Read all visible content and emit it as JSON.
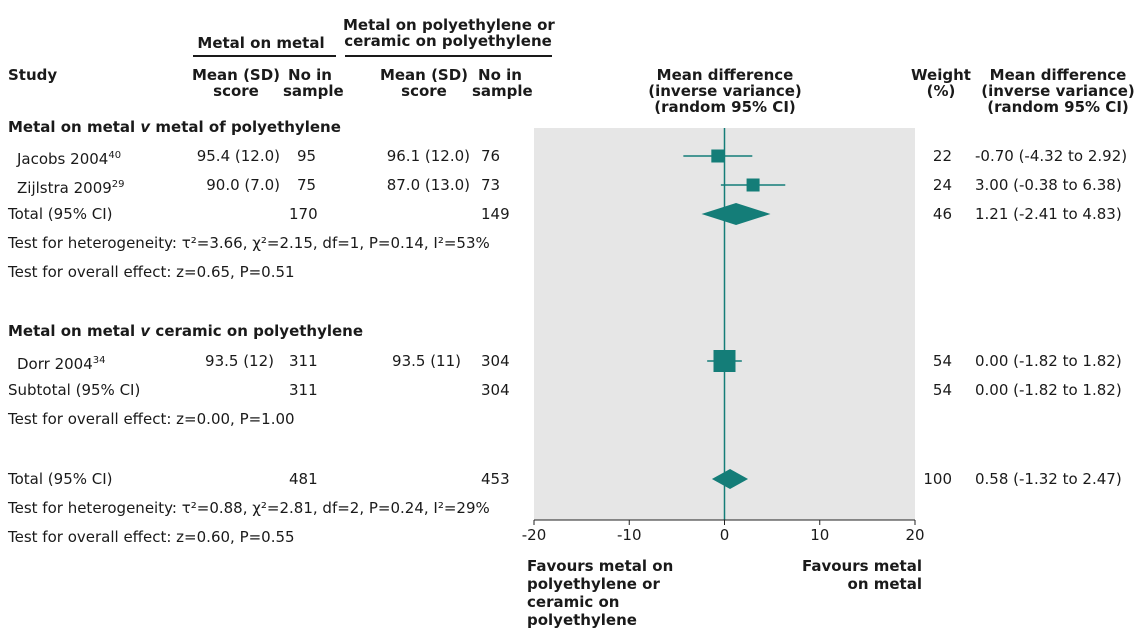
{
  "headers": {
    "study": "Study",
    "group1": "Metal on metal",
    "group2_line1": "Metal on polyethylene or",
    "group2_line2": "ceramic on polyethylene",
    "mean_sd_1": "Mean (SD)",
    "score_1": "score",
    "noin_1": "No in",
    "sample_1": "sample",
    "mean_sd_2": "Mean (SD)",
    "score_2": "score",
    "noin_2": "No in",
    "sample_2": "sample",
    "md_line1": "Mean difference",
    "md_line2": "(inverse variance)",
    "md_line3": "(random 95% CI)",
    "weight_line1": "Weight",
    "weight_line2": "(%)",
    "mdr_line1": "Mean difference",
    "mdr_line2": "(inverse variance)",
    "mdr_line3": "(random 95% CI)"
  },
  "sections": [
    {
      "title_a": "Metal on metal ",
      "title_v": "v",
      "title_b": " metal of polyethylene",
      "studies": [
        {
          "name": "Jacobs 2004",
          "ref": "40",
          "m1": "95.4 (12.0)",
          "n1": "95",
          "m2": "96.1 (12.0)",
          "n2": "76",
          "weight": "22",
          "ci_text": "-0.70 (-4.32 to 2.92)"
        },
        {
          "name": "Zijlstra 2009",
          "ref": "29",
          "m1": "90.0 (7.0)",
          "n1": "75",
          "m2": "87.0 (13.0)",
          "n2": "73",
          "weight": "24",
          "ci_text": "3.00 (-0.38 to 6.38)"
        }
      ],
      "total": {
        "label": "Total (95% CI)",
        "n1": "170",
        "n2": "149",
        "weight": "46",
        "ci_text": "1.21 (-2.41 to 4.83)"
      },
      "het": "Test for heterogeneity: τ²=3.66, χ²=2.15, df=1, P=0.14, I²=53%",
      "overall": "Test for overall effect: z=0.65, P=0.51"
    },
    {
      "title_a": "Metal on metal ",
      "title_v": "v",
      "title_b": " ceramic on polyethylene",
      "studies": [
        {
          "name": "Dorr 2004",
          "ref": "34",
          "m1": "93.5 (12)",
          "n1": "311",
          "m2": "93.5 (11)",
          "n2": "304",
          "weight": "54",
          "ci_text": "0.00 (-1.82 to 1.82)"
        }
      ],
      "total": {
        "label": "Subtotal (95% CI)",
        "n1": "311",
        "n2": "304",
        "weight": "54",
        "ci_text": "0.00 (-1.82 to 1.82)"
      },
      "overall": "Test for overall effect: z=0.00, P=1.00"
    }
  ],
  "grand_total": {
    "label": "Total (95% CI)",
    "n1": "481",
    "n2": "453",
    "weight": "100",
    "ci_text": "0.58 (-1.32 to 2.47)"
  },
  "grand_het": "Test for heterogeneity: τ²=0.88, χ²=2.81, df=2, P=0.24, I²=29%",
  "grand_overall": "Test for overall effect: z=0.60, P=0.55",
  "favours_left": [
    "Favours metal on",
    "polyethylene or",
    "ceramic on",
    "polyethylene"
  ],
  "favours_right": [
    "Favours metal",
    "on metal"
  ],
  "colors": {
    "marker": "#147d78",
    "panel": "#e6e6e6",
    "axis": "#222222"
  },
  "chart_data": {
    "type": "forest",
    "xlim": [
      -20,
      20
    ],
    "xticks": [
      -20,
      -10,
      0,
      10,
      20
    ],
    "xtick_labels": [
      "-20",
      "-10",
      "0",
      "10",
      "20"
    ],
    "grid": false,
    "studies": [
      {
        "name": "Jacobs 2004",
        "md": -0.7,
        "lo": -4.32,
        "hi": 2.92,
        "weight": 22
      },
      {
        "name": "Zijlstra 2009",
        "md": 3.0,
        "lo": -0.38,
        "hi": 6.38,
        "weight": 24
      },
      {
        "name": "Dorr 2004",
        "md": 0.0,
        "lo": -1.82,
        "hi": 1.82,
        "weight": 54
      }
    ],
    "pooled": [
      {
        "name": "Total (95% CI)",
        "md": 1.21,
        "lo": -2.41,
        "hi": 4.83
      },
      {
        "name": "Total (95% CI)",
        "md": 0.58,
        "lo": -1.32,
        "hi": 2.47
      }
    ]
  }
}
